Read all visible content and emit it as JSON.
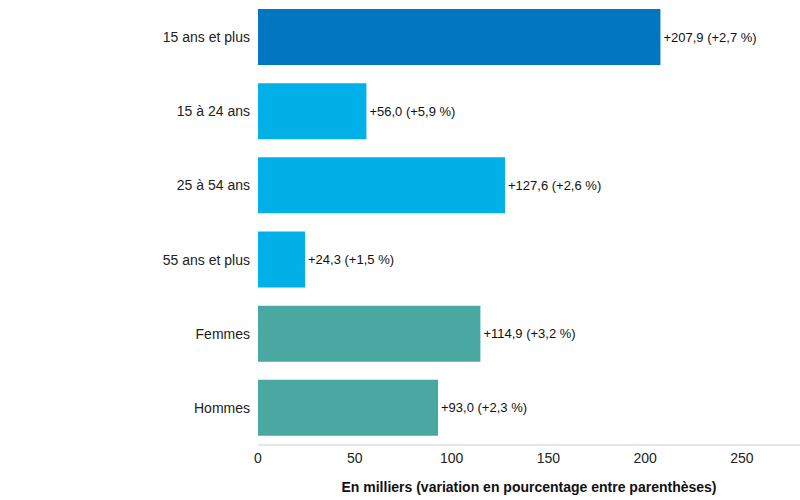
{
  "chart_data": {
    "type": "bar",
    "orientation": "horizontal",
    "categories": [
      "15 ans et plus",
      "15 à 24 ans",
      "25 à 54 ans",
      "55 ans et plus",
      "Femmes",
      "Hommes"
    ],
    "values": [
      207.9,
      56.0,
      127.6,
      24.3,
      114.9,
      93.0
    ],
    "value_labels": [
      "+207,9 (+2,7 %)",
      "+56,0 (+5,9 %)",
      "+127,6 (+2,6 %)",
      "+24,3 (+1,5 %)",
      "+114,9 (+3,2 %)",
      "+93,0 (+2,3 %)"
    ],
    "colors": [
      "#0077c0",
      "#00b0e6",
      "#00b0e6",
      "#00b0e6",
      "#49a8a1",
      "#49a8a1"
    ],
    "xlabel": "En milliers (variation en pourcentage entre parenthèses)",
    "xlim": [
      0,
      280
    ],
    "xticks": [
      0,
      50,
      100,
      150,
      200,
      250
    ],
    "data_labels": true,
    "grid": false
  }
}
